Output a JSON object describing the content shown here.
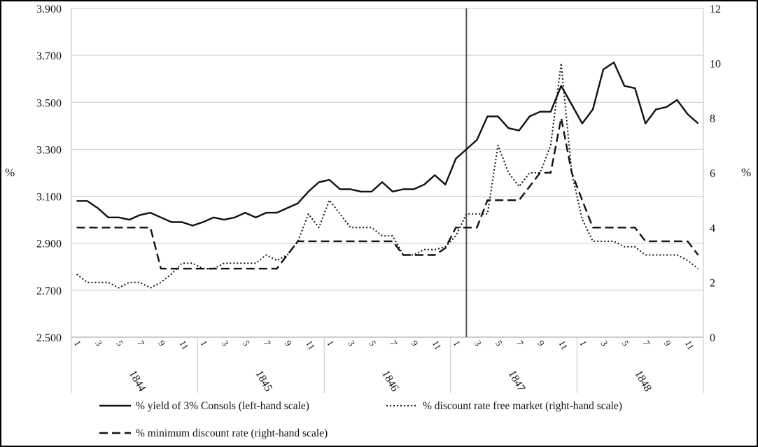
{
  "chart_data": {
    "type": "line",
    "y_left_unit": "%",
    "y_right_unit": "%",
    "ylim_left": [
      2.5,
      3.9
    ],
    "ylim_right": [
      0,
      12
    ],
    "y_left_ticks": [
      "2.500",
      "2.700",
      "2.900",
      "3.100",
      "3.300",
      "3.500",
      "3.700",
      "3.900"
    ],
    "y_right_ticks": [
      "0",
      "2",
      "4",
      "6",
      "8",
      "10",
      "12"
    ],
    "x_month_labels": [
      "1",
      "3",
      "5",
      "7",
      "9",
      "11"
    ],
    "years": [
      "1844",
      "1845",
      "1846",
      "1847",
      "1848"
    ],
    "months_per_year": 12,
    "vertical_marker_month_index": 37.5,
    "grid": "horizontal",
    "legend_position": "bottom",
    "series": [
      {
        "name": "% yield of 3% Consols (left-hand scale)",
        "axis": "left",
        "style": "solid",
        "values": [
          3.08,
          3.08,
          3.05,
          3.01,
          3.01,
          3.0,
          3.02,
          3.03,
          3.01,
          2.99,
          2.99,
          2.975,
          2.99,
          3.01,
          3.0,
          3.01,
          3.03,
          3.01,
          3.03,
          3.03,
          3.05,
          3.07,
          3.12,
          3.16,
          3.17,
          3.13,
          3.13,
          3.12,
          3.12,
          3.16,
          3.12,
          3.13,
          3.13,
          3.15,
          3.19,
          3.15,
          3.26,
          3.3,
          3.34,
          3.44,
          3.44,
          3.39,
          3.38,
          3.44,
          3.46,
          3.46,
          3.57,
          3.49,
          3.41,
          3.47,
          3.64,
          3.67,
          3.57,
          3.56,
          3.41,
          3.47,
          3.48,
          3.51,
          3.45,
          3.41
        ]
      },
      {
        "name": "% discount rate free market (right-hand scale)",
        "axis": "right",
        "style": "dotted",
        "values": [
          2.3,
          2.0,
          2.0,
          2.0,
          1.8,
          2.0,
          2.0,
          1.8,
          2.0,
          2.3,
          2.7,
          2.7,
          2.5,
          2.5,
          2.7,
          2.7,
          2.7,
          2.7,
          3.0,
          2.8,
          3.0,
          3.5,
          4.5,
          4.0,
          5.0,
          4.5,
          4.0,
          4.0,
          4.0,
          3.7,
          3.7,
          3.0,
          3.0,
          3.2,
          3.2,
          3.3,
          3.7,
          4.5,
          4.5,
          4.5,
          7.0,
          6.0,
          5.5,
          6.0,
          6.0,
          7.0,
          10.0,
          6.0,
          4.3,
          3.5,
          3.5,
          3.5,
          3.3,
          3.3,
          3.0,
          3.0,
          3.0,
          3.0,
          2.8,
          2.5
        ]
      },
      {
        "name": "% minimum discount rate (right-hand scale)",
        "axis": "right",
        "style": "dashed",
        "values": [
          4,
          4,
          4,
          4,
          4,
          4,
          4,
          4,
          2.5,
          2.5,
          2.5,
          2.5,
          2.5,
          2.5,
          2.5,
          2.5,
          2.5,
          2.5,
          2.5,
          2.5,
          3,
          3.5,
          3.5,
          3.5,
          3.5,
          3.5,
          3.5,
          3.5,
          3.5,
          3.5,
          3.5,
          3,
          3,
          3,
          3,
          3.25,
          4,
          4,
          4,
          5,
          5,
          5,
          5,
          5.5,
          6,
          6,
          8,
          6,
          5,
          4,
          4,
          4,
          4,
          4,
          3.5,
          3.5,
          3.5,
          3.5,
          3.5,
          3
        ]
      }
    ]
  }
}
